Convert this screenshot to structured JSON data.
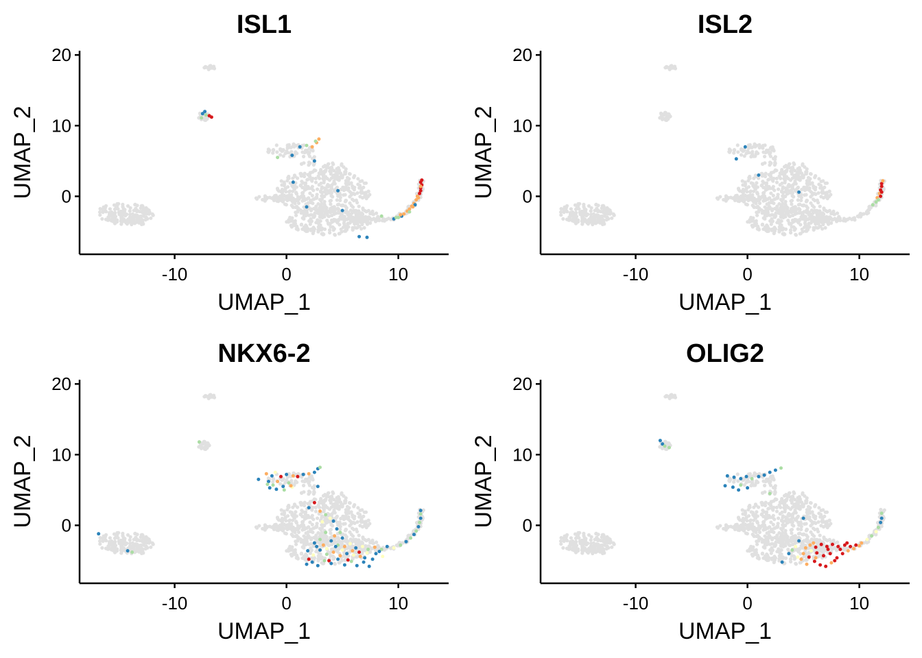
{
  "chart_data": [
    {
      "type": "scatter",
      "title": "ISL1",
      "xlabel": "UMAP_1",
      "ylabel": "UMAP_2",
      "xlim": [
        -18.5,
        14.5
      ],
      "ylim": [
        -8.2,
        20.6
      ],
      "xticks": [
        {
          "value": -10,
          "label": "-10"
        },
        {
          "value": 0,
          "label": "0"
        },
        {
          "value": 10,
          "label": "10"
        }
      ],
      "yticks": [
        {
          "value": 0,
          "label": "0"
        },
        {
          "value": 10,
          "label": "10"
        },
        {
          "value": 20,
          "label": "20"
        }
      ],
      "grid": false,
      "background_color": "#e0e0e0",
      "colors": {
        "very_high": "#d7191c",
        "high": "#fdae61",
        "mid": "#ffffbf",
        "low": "#abdda4",
        "very_low": "#2b83ba"
      },
      "points": [
        [
          -7.5,
          11.7,
          0.1
        ],
        [
          -7.3,
          12.0,
          0.1
        ],
        [
          -7.2,
          11.5,
          0.35
        ],
        [
          -6.9,
          11.4,
          0.95
        ],
        [
          -6.7,
          11.2,
          1.0
        ],
        [
          -7.6,
          11.1,
          0.3
        ],
        [
          1.2,
          7.0,
          0.1
        ],
        [
          1.8,
          7.2,
          0.3
        ],
        [
          2.3,
          7.0,
          0.6
        ],
        [
          2.7,
          7.6,
          0.7
        ],
        [
          2.9,
          8.1,
          0.75
        ],
        [
          2.6,
          7.8,
          0.4
        ],
        [
          -0.8,
          5.5,
          0.35
        ],
        [
          0.5,
          5.8,
          0.1
        ],
        [
          2.5,
          5.0,
          0.1
        ],
        [
          0.6,
          2.0,
          0.1
        ],
        [
          1.8,
          -1.5,
          0.1
        ],
        [
          4.6,
          0.8,
          0.1
        ],
        [
          5.0,
          -2.0,
          0.1
        ],
        [
          6.5,
          -5.7,
          0.1
        ],
        [
          7.2,
          -5.8,
          0.1
        ],
        [
          8.5,
          -2.8,
          0.3
        ],
        [
          9.6,
          -3.2,
          0.1
        ],
        [
          9.8,
          -3.0,
          0.3
        ],
        [
          10.3,
          -2.8,
          0.2
        ],
        [
          10.5,
          -2.5,
          0.7
        ],
        [
          10.8,
          -2.1,
          0.75
        ],
        [
          11.0,
          -1.8,
          0.7
        ],
        [
          11.2,
          -1.4,
          0.75
        ],
        [
          11.4,
          -1.0,
          0.7
        ],
        [
          11.6,
          -0.5,
          0.8
        ],
        [
          11.7,
          0.0,
          0.75
        ],
        [
          11.9,
          0.4,
          0.85
        ],
        [
          12.0,
          0.8,
          0.9
        ],
        [
          12.0,
          1.2,
          0.95
        ],
        [
          12.1,
          1.6,
          1.0
        ],
        [
          12.0,
          2.0,
          1.0
        ],
        [
          12.1,
          2.3,
          0.95
        ],
        [
          11.8,
          -0.2,
          0.7
        ],
        [
          11.5,
          -1.2,
          0.2
        ],
        [
          11.0,
          -2.2,
          0.3
        ],
        [
          10.2,
          -2.6,
          0.8
        ],
        [
          10.0,
          -3.0,
          0.35
        ],
        [
          12.0,
          1.4,
          0.8
        ],
        [
          11.3,
          -1.5,
          0.65
        ]
      ]
    },
    {
      "type": "scatter",
      "title": "ISL2",
      "xlabel": "UMAP_1",
      "ylabel": "UMAP_2",
      "xlim": [
        -18.5,
        14.5
      ],
      "ylim": [
        -8.2,
        20.6
      ],
      "xticks": [
        {
          "value": -10,
          "label": "-10"
        },
        {
          "value": 0,
          "label": "0"
        },
        {
          "value": 10,
          "label": "10"
        }
      ],
      "yticks": [
        {
          "value": 0,
          "label": "0"
        },
        {
          "value": 10,
          "label": "10"
        },
        {
          "value": 20,
          "label": "20"
        }
      ],
      "grid": false,
      "background_color": "#e0e0e0",
      "colors": {
        "very_high": "#d7191c",
        "high": "#fdae61",
        "mid": "#ffffbf",
        "low": "#abdda4",
        "very_low": "#2b83ba"
      },
      "points": [
        [
          -1.0,
          5.3,
          0.1
        ],
        [
          -0.2,
          7.0,
          0.1
        ],
        [
          4.6,
          0.6,
          0.1
        ],
        [
          1.0,
          3.0,
          0.1
        ],
        [
          11.2,
          -1.2,
          0.3
        ],
        [
          11.5,
          -0.8,
          0.4
        ],
        [
          11.6,
          -0.2,
          0.65
        ],
        [
          11.8,
          0.4,
          0.8
        ],
        [
          11.9,
          0.9,
          0.85
        ],
        [
          12.0,
          1.4,
          0.9
        ],
        [
          12.0,
          1.8,
          0.95
        ],
        [
          12.1,
          2.2,
          0.8
        ],
        [
          11.9,
          0.0,
          1.0
        ],
        [
          12.0,
          0.6,
          1.0
        ],
        [
          11.7,
          -0.5,
          0.3
        ]
      ]
    },
    {
      "type": "scatter",
      "title": "NKX6-2",
      "xlabel": "UMAP_1",
      "ylabel": "UMAP_2",
      "xlim": [
        -18.5,
        14.5
      ],
      "ylim": [
        -8.2,
        20.6
      ],
      "xticks": [
        {
          "value": -10,
          "label": "-10"
        },
        {
          "value": 0,
          "label": "0"
        },
        {
          "value": 10,
          "label": "10"
        }
      ],
      "yticks": [
        {
          "value": 0,
          "label": "0"
        },
        {
          "value": 10,
          "label": "10"
        },
        {
          "value": 20,
          "label": "20"
        }
      ],
      "grid": false,
      "background_color": "#e0e0e0",
      "colors": {
        "very_high": "#d7191c",
        "high": "#fdae61",
        "mid": "#ffffbf",
        "low": "#abdda4",
        "very_low": "#2b83ba"
      },
      "points": [
        [
          -16.8,
          -1.2,
          0.1
        ],
        [
          -14.2,
          -3.6,
          0.1
        ],
        [
          -13.8,
          -3.8,
          0.3
        ],
        [
          -7.8,
          11.8,
          0.3
        ],
        [
          -1.8,
          7.3,
          0.6
        ],
        [
          -1.3,
          7.0,
          0.1
        ],
        [
          -1.0,
          7.5,
          0.5
        ],
        [
          -0.5,
          6.9,
          0.9
        ],
        [
          0.0,
          7.2,
          0.2
        ],
        [
          0.6,
          7.0,
          0.6
        ],
        [
          1.0,
          6.9,
          0.9
        ],
        [
          1.5,
          7.2,
          0.1
        ],
        [
          2.0,
          7.3,
          0.8
        ],
        [
          2.5,
          7.5,
          0.1
        ],
        [
          2.8,
          8.0,
          0.1
        ],
        [
          3.0,
          8.2,
          0.3
        ],
        [
          -1.6,
          6.2,
          0.1
        ],
        [
          -1.2,
          5.7,
          0.4
        ],
        [
          -0.8,
          6.2,
          0.6
        ],
        [
          -0.3,
          5.5,
          0.1
        ],
        [
          0.2,
          6.0,
          0.4
        ],
        [
          0.5,
          5.4,
          0.5
        ],
        [
          -1.5,
          5.3,
          0.1
        ],
        [
          -0.9,
          5.1,
          0.2
        ],
        [
          -0.2,
          5.0,
          0.3
        ],
        [
          0.4,
          5.6,
          0.7
        ],
        [
          -2.5,
          6.5,
          0.2
        ],
        [
          -1.7,
          5.8,
          0.3
        ],
        [
          2.8,
          5.5,
          0.1
        ],
        [
          2.5,
          3.2,
          0.9
        ],
        [
          3.0,
          2.0,
          0.6
        ],
        [
          3.5,
          1.5,
          0.3
        ],
        [
          3.9,
          1.0,
          0.5
        ],
        [
          4.2,
          0.6,
          0.2
        ],
        [
          2.0,
          2.5,
          0.1
        ],
        [
          3.2,
          0.5,
          0.5
        ],
        [
          4.5,
          -0.5,
          0.2
        ],
        [
          4.8,
          -1.0,
          0.4
        ],
        [
          5.0,
          -1.8,
          0.1
        ],
        [
          4.3,
          -1.5,
          0.6
        ],
        [
          3.5,
          -1.0,
          0.3
        ],
        [
          3.0,
          -2.0,
          0.4
        ],
        [
          2.5,
          -2.5,
          0.2
        ],
        [
          3.3,
          -2.8,
          0.6
        ],
        [
          4.0,
          -2.2,
          0.1
        ],
        [
          4.6,
          -2.8,
          0.35
        ],
        [
          5.2,
          -3.0,
          0.6
        ],
        [
          5.7,
          -2.6,
          0.45
        ],
        [
          6.2,
          -3.2,
          0.2
        ],
        [
          6.8,
          -3.0,
          0.5
        ],
        [
          7.3,
          -3.4,
          0.35
        ],
        [
          7.9,
          -3.1,
          0.6
        ],
        [
          8.5,
          -3.4,
          0.4
        ],
        [
          9.0,
          -3.0,
          0.2
        ],
        [
          9.6,
          -3.2,
          0.5
        ],
        [
          10.2,
          -2.8,
          0.35
        ],
        [
          10.7,
          -2.3,
          0.1
        ],
        [
          11.1,
          -1.8,
          0.3
        ],
        [
          11.4,
          -1.3,
          0.1
        ],
        [
          11.6,
          -0.8,
          0.35
        ],
        [
          11.8,
          -0.2,
          0.1
        ],
        [
          11.9,
          0.4,
          0.3
        ],
        [
          12.0,
          1.0,
          0.1
        ],
        [
          12.0,
          1.6,
          0.35
        ],
        [
          12.0,
          2.1,
          0.1
        ],
        [
          1.8,
          -5.5,
          0.1
        ],
        [
          2.3,
          -5.2,
          0.2
        ],
        [
          2.8,
          -5.7,
          0.1
        ],
        [
          3.4,
          -5.0,
          0.3
        ],
        [
          4.0,
          -5.4,
          0.1
        ],
        [
          4.6,
          -4.8,
          0.2
        ],
        [
          5.2,
          -5.6,
          0.1
        ],
        [
          5.8,
          -5.1,
          0.35
        ],
        [
          6.3,
          -5.7,
          0.1
        ],
        [
          6.9,
          -5.2,
          0.2
        ],
        [
          7.4,
          -5.8,
          0.1
        ],
        [
          7.0,
          -4.6,
          0.1
        ],
        [
          6.0,
          -4.2,
          0.5
        ],
        [
          5.4,
          -4.0,
          0.2
        ],
        [
          4.8,
          -4.3,
          0.8
        ],
        [
          4.2,
          -3.8,
          0.65
        ],
        [
          3.6,
          -4.1,
          0.3
        ],
        [
          3.0,
          -3.5,
          0.15
        ],
        [
          2.4,
          -4.2,
          0.45
        ],
        [
          1.9,
          -3.6,
          0.2
        ],
        [
          2.0,
          -4.8,
          0.85
        ],
        [
          3.8,
          -5.0,
          0.9
        ],
        [
          5.5,
          -4.9,
          0.95
        ],
        [
          6.5,
          -3.8,
          0.9
        ],
        [
          8.0,
          -4.0,
          0.2
        ],
        [
          8.6,
          -4.4,
          0.45
        ],
        [
          7.7,
          -4.8,
          0.1
        ],
        [
          6.6,
          -4.4,
          0.6
        ],
        [
          5.0,
          -3.5,
          0.45
        ],
        [
          4.4,
          -3.0,
          0.15
        ],
        [
          3.6,
          -3.3,
          0.5
        ],
        [
          2.7,
          -3.0,
          0.1
        ],
        [
          5.9,
          -3.6,
          0.7
        ],
        [
          7.2,
          -3.9,
          0.45
        ],
        [
          8.3,
          -3.7,
          0.2
        ]
      ]
    },
    {
      "type": "scatter",
      "title": "OLIG2",
      "xlabel": "UMAP_1",
      "ylabel": "UMAP_2",
      "xlim": [
        -18.5,
        14.5
      ],
      "ylim": [
        -8.2,
        20.6
      ],
      "xticks": [
        {
          "value": -10,
          "label": "-10"
        },
        {
          "value": 0,
          "label": "0"
        },
        {
          "value": 10,
          "label": "10"
        }
      ],
      "yticks": [
        {
          "value": 0,
          "label": "0"
        },
        {
          "value": 10,
          "label": "10"
        },
        {
          "value": 20,
          "label": "20"
        }
      ],
      "grid": false,
      "background_color": "#e0e0e0",
      "colors": {
        "very_high": "#d7191c",
        "high": "#fdae61",
        "mid": "#ffffbf",
        "low": "#abdda4",
        "very_low": "#2b83ba"
      },
      "points": [
        [
          -7.8,
          12.0,
          0.1
        ],
        [
          -7.6,
          11.5,
          0.1
        ],
        [
          -7.4,
          11.2,
          0.3
        ],
        [
          -7.0,
          11.0,
          0.3
        ],
        [
          -1.8,
          7.0,
          0.1
        ],
        [
          -1.2,
          6.8,
          0.1
        ],
        [
          -0.6,
          6.6,
          0.1
        ],
        [
          -0.1,
          6.9,
          0.1
        ],
        [
          0.4,
          6.6,
          0.4
        ],
        [
          1.0,
          6.9,
          0.1
        ],
        [
          1.5,
          7.1,
          0.1
        ],
        [
          2.0,
          7.5,
          0.1
        ],
        [
          2.5,
          7.8,
          0.1
        ],
        [
          3.0,
          8.1,
          0.3
        ],
        [
          -2.0,
          5.6,
          0.1
        ],
        [
          -1.3,
          5.4,
          0.1
        ],
        [
          -0.6,
          5.7,
          0.3
        ],
        [
          0.0,
          5.3,
          0.1
        ],
        [
          2.0,
          4.5,
          0.3
        ],
        [
          -0.8,
          5.0,
          0.2
        ],
        [
          5.0,
          1.0,
          0.1
        ],
        [
          4.6,
          -2.2,
          0.1
        ],
        [
          4.3,
          -3.0,
          0.5
        ],
        [
          4.0,
          -3.5,
          0.3
        ],
        [
          3.7,
          -4.0,
          0.15
        ],
        [
          3.1,
          -5.2,
          0.1
        ],
        [
          5.2,
          -3.2,
          0.6
        ],
        [
          5.6,
          -2.8,
          0.8
        ],
        [
          6.1,
          -3.1,
          0.95
        ],
        [
          6.6,
          -2.7,
          0.85
        ],
        [
          7.1,
          -3.0,
          0.95
        ],
        [
          7.6,
          -2.7,
          1.0
        ],
        [
          8.1,
          -3.0,
          0.9
        ],
        [
          8.7,
          -2.8,
          1.0
        ],
        [
          9.2,
          -3.0,
          0.95
        ],
        [
          9.7,
          -2.8,
          0.9
        ],
        [
          10.2,
          -2.5,
          0.7
        ],
        [
          10.7,
          -2.0,
          0.45
        ],
        [
          11.1,
          -1.5,
          0.35
        ],
        [
          11.5,
          -0.9,
          0.5
        ],
        [
          11.7,
          -0.3,
          0.3
        ],
        [
          11.9,
          0.4,
          0.1
        ],
        [
          12.0,
          1.0,
          0.15
        ],
        [
          12.0,
          1.7,
          0.3
        ],
        [
          5.0,
          -4.0,
          0.65
        ],
        [
          5.5,
          -4.5,
          0.9
        ],
        [
          6.0,
          -5.1,
          1.0
        ],
        [
          6.5,
          -5.6,
          0.95
        ],
        [
          7.0,
          -5.8,
          1.0
        ],
        [
          7.5,
          -5.3,
          0.8
        ],
        [
          8.0,
          -4.6,
          0.95
        ],
        [
          8.5,
          -4.0,
          0.9
        ],
        [
          9.0,
          -3.6,
          0.75
        ],
        [
          6.8,
          -4.3,
          0.85
        ],
        [
          7.4,
          -4.0,
          1.0
        ],
        [
          6.2,
          -3.9,
          0.9
        ],
        [
          5.7,
          -3.6,
          0.55
        ],
        [
          4.8,
          -4.8,
          0.6
        ],
        [
          5.3,
          -5.5,
          0.7
        ],
        [
          6.1,
          -4.6,
          0.8
        ],
        [
          7.2,
          -3.4,
          0.85
        ],
        [
          8.3,
          -3.4,
          1.0
        ],
        [
          9.5,
          -3.3,
          0.8
        ],
        [
          10.0,
          -2.9,
          0.65
        ],
        [
          4.5,
          -4.5,
          0.45
        ],
        [
          7.8,
          -5.0,
          0.9
        ],
        [
          5.9,
          -2.5,
          0.7
        ],
        [
          8.9,
          -2.5,
          0.95
        ]
      ]
    }
  ]
}
